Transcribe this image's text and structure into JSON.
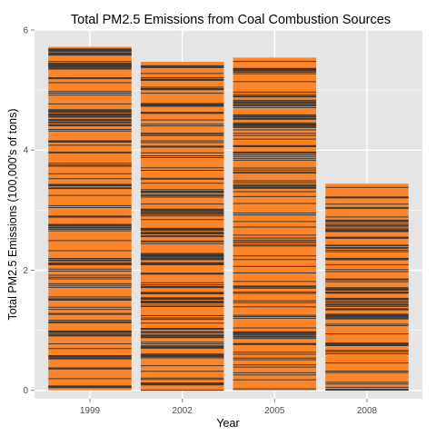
{
  "chart_data": {
    "type": "bar",
    "title": "Total PM2.5 Emissions from Coal Combustion Sources",
    "xlabel": "Year",
    "ylabel": "Total PM2.5 Emissions (100,000's of tons)",
    "categories": [
      "1999",
      "2002",
      "2005",
      "2008"
    ],
    "values": [
      5.72,
      5.47,
      5.54,
      3.44
    ],
    "ylim": [
      -0.14,
      6.0
    ],
    "yticks": [
      0,
      2,
      4,
      6
    ],
    "ytick_labels": [
      "0",
      "2",
      "4",
      "6"
    ],
    "grid": true,
    "bar_color": "#ff8427",
    "segment_line_color": "#3a3a3a",
    "panel_background": "#e5e5e5",
    "grid_color": "#ffffff",
    "note": "Each bar is a stack of many small per-source contributions; boundaries between stacked segments appear as thin dark lines."
  }
}
